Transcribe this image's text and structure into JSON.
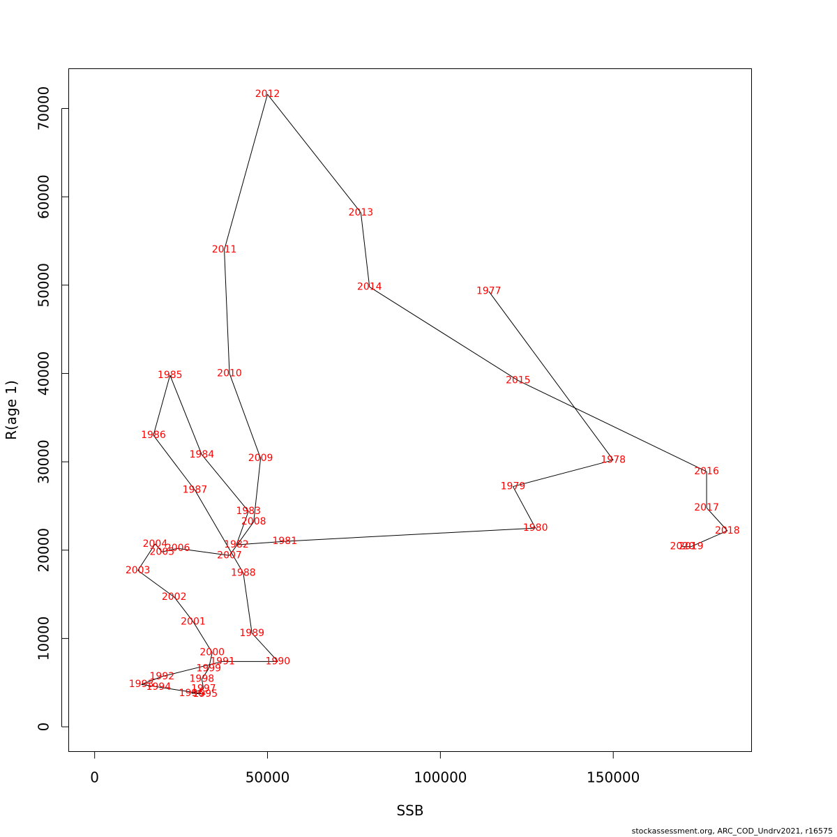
{
  "chart_data": {
    "type": "line",
    "title": "",
    "xlabel": "SSB",
    "ylabel": "R(age 1)",
    "xlim": [
      -7500,
      190000
    ],
    "ylim": [
      -2800,
      74500
    ],
    "x_ticks": [
      0,
      50000,
      100000,
      150000
    ],
    "x_tick_labels": [
      "0",
      "50000",
      "100000",
      "150000"
    ],
    "y_ticks": [
      0,
      10000,
      20000,
      30000,
      40000,
      50000,
      60000,
      70000
    ],
    "y_tick_labels": [
      "0",
      "10000",
      "20000",
      "30000",
      "40000",
      "50000",
      "60000",
      "70000"
    ],
    "grid": false,
    "line_color": "#000000",
    "label_color": "#ff0000",
    "points": [
      {
        "year": "1977",
        "x": 114000,
        "y": 49300
      },
      {
        "year": "1978",
        "x": 150000,
        "y": 30200
      },
      {
        "year": "1979",
        "x": 121000,
        "y": 27200
      },
      {
        "year": "1980",
        "x": 127500,
        "y": 22500
      },
      {
        "year": "1981",
        "x": 55000,
        "y": 21000
      },
      {
        "year": "1982",
        "x": 41000,
        "y": 20600
      },
      {
        "year": "1983",
        "x": 44500,
        "y": 24400
      },
      {
        "year": "1984",
        "x": 31000,
        "y": 30800
      },
      {
        "year": "1985",
        "x": 21800,
        "y": 39800
      },
      {
        "year": "1986",
        "x": 17000,
        "y": 33000
      },
      {
        "year": "1987",
        "x": 29000,
        "y": 26800
      },
      {
        "year": "1988",
        "x": 43000,
        "y": 17400
      },
      {
        "year": "1989",
        "x": 45500,
        "y": 10600
      },
      {
        "year": "1990",
        "x": 53000,
        "y": 7400
      },
      {
        "year": "1991",
        "x": 37000,
        "y": 7400
      },
      {
        "year": "1992",
        "x": 19500,
        "y": 5700
      },
      {
        "year": "1993",
        "x": 13500,
        "y": 4800
      },
      {
        "year": "1994",
        "x": 18500,
        "y": 4500
      },
      {
        "year": "1995",
        "x": 32000,
        "y": 3700
      },
      {
        "year": "1996",
        "x": 28000,
        "y": 3800
      },
      {
        "year": "1997",
        "x": 31500,
        "y": 4300
      },
      {
        "year": "1998",
        "x": 31000,
        "y": 5400
      },
      {
        "year": "1999",
        "x": 33000,
        "y": 6600
      },
      {
        "year": "2000",
        "x": 34000,
        "y": 8400
      },
      {
        "year": "2001",
        "x": 28500,
        "y": 11900
      },
      {
        "year": "2002",
        "x": 23000,
        "y": 14700
      },
      {
        "year": "2003",
        "x": 12500,
        "y": 17700
      },
      {
        "year": "2004",
        "x": 17500,
        "y": 20700
      },
      {
        "year": "2005",
        "x": 19500,
        "y": 19800
      },
      {
        "year": "2006",
        "x": 24000,
        "y": 20200
      },
      {
        "year": "2007",
        "x": 39000,
        "y": 19400
      },
      {
        "year": "2008",
        "x": 46000,
        "y": 23200
      },
      {
        "year": "2009",
        "x": 48000,
        "y": 30400
      },
      {
        "year": "2010",
        "x": 39000,
        "y": 40000
      },
      {
        "year": "2011",
        "x": 37500,
        "y": 54000
      },
      {
        "year": "2012",
        "x": 50000,
        "y": 71600
      },
      {
        "year": "2013",
        "x": 77000,
        "y": 58200
      },
      {
        "year": "2014",
        "x": 79500,
        "y": 49800
      },
      {
        "year": "2015",
        "x": 122500,
        "y": 39200
      },
      {
        "year": "2016",
        "x": 177000,
        "y": 28900
      },
      {
        "year": "2017",
        "x": 177000,
        "y": 24800
      },
      {
        "year": "2018",
        "x": 183000,
        "y": 22200
      },
      {
        "year": "2019",
        "x": 172500,
        "y": 20400
      },
      {
        "year": "2020",
        "x": 170000,
        "y": 20400
      }
    ]
  },
  "footer": {
    "source": "stockassessment.org, ARC_COD_Undrv2021, r16575"
  }
}
